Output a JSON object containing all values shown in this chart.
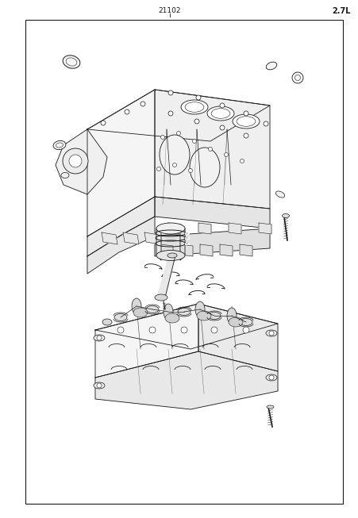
{
  "title_part_number": "21102",
  "title_version": "2.7L",
  "background_color": "#ffffff",
  "line_color": "#1a1a1a",
  "border_color": "#000000",
  "fig_width": 4.52,
  "fig_height": 6.53,
  "dpi": 100
}
